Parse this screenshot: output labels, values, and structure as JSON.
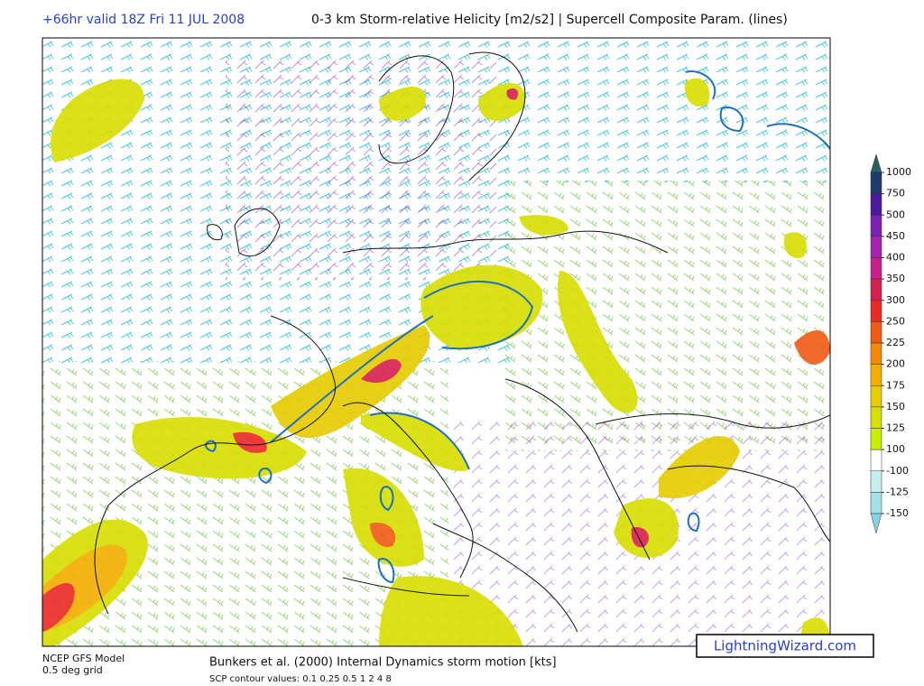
{
  "header": {
    "run": "+66hr valid 18Z Fri 11 JUL 2008",
    "title": "0-3 km Storm-relative Helicity [m2/s2] | Supercell Composite Param. (lines)"
  },
  "colorbar": {
    "levels": [
      1000,
      750,
      500,
      450,
      400,
      350,
      300,
      250,
      225,
      200,
      175,
      150,
      125,
      100,
      -100,
      -125,
      -150
    ],
    "colors": [
      "#27615f",
      "#1c3c6c",
      "#4a1a9a",
      "#7a22b4",
      "#a623b0",
      "#c8208a",
      "#d8204e",
      "#ea2a24",
      "#f05a14",
      "#f28a06",
      "#f2ae00",
      "#e6cc00",
      "#d8de00",
      "#c8ee00",
      "#ffffff",
      "#c4eef0",
      "#a4e0e8",
      "#86d2e0"
    ]
  },
  "footer": {
    "model": "NCEP GFS Model",
    "grid": "0.5 deg grid",
    "motion": "Bunkers et al. (2000) Internal Dynamics storm motion [kts]",
    "scp": "SCP contour values: 0.1 0.25 0.5 1 2 4 8"
  },
  "watermark": "LightningWizard.com"
}
